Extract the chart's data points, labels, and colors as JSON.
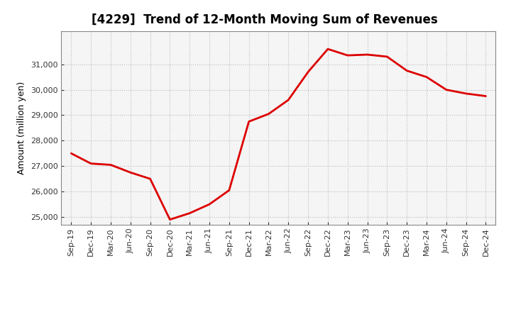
{
  "title": "[4229]  Trend of 12-Month Moving Sum of Revenues",
  "ylabel": "Amount (million yen)",
  "background_color": "#ffffff",
  "plot_bg_color": "#f5f5f5",
  "line_color": "#dd0000",
  "line_width": 2.0,
  "x_labels": [
    "Sep-19",
    "Dec-19",
    "Mar-20",
    "Jun-20",
    "Sep-20",
    "Dec-20",
    "Mar-21",
    "Jun-21",
    "Sep-21",
    "Dec-21",
    "Mar-22",
    "Jun-22",
    "Sep-22",
    "Dec-22",
    "Mar-23",
    "Jun-23",
    "Sep-23",
    "Dec-23",
    "Mar-24",
    "Jun-24",
    "Sep-24",
    "Dec-24"
  ],
  "y_values": [
    27500,
    27100,
    27050,
    26750,
    26500,
    24900,
    25150,
    25500,
    26050,
    28750,
    29050,
    29600,
    30700,
    31600,
    31350,
    31380,
    31300,
    30750,
    30500,
    30000,
    29850,
    29750
  ],
  "ylim_min": 24700,
  "ylim_max": 32300,
  "yticks": [
    25000,
    26000,
    27000,
    28000,
    29000,
    30000,
    31000
  ],
  "title_fontsize": 12,
  "ylabel_fontsize": 9,
  "tick_fontsize": 8,
  "grid_color": "#bbbbbb",
  "grid_style": ":"
}
